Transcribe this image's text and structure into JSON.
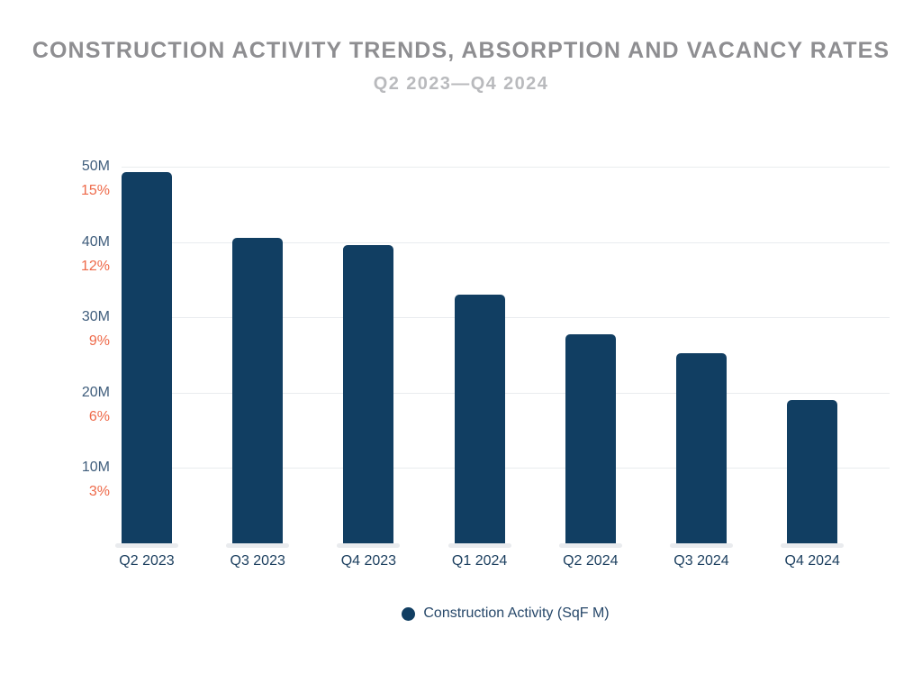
{
  "chart_data": {
    "type": "bar",
    "title": "CONSTRUCTION ACTIVITY TRENDS, ABSORPTION AND VACANCY RATES",
    "subtitle": "Q2 2023—Q4 2024",
    "categories": [
      "Q2 2023",
      "Q3 2023",
      "Q4 2023",
      "Q1 2024",
      "Q2 2024",
      "Q3 2024",
      "Q4 2024"
    ],
    "series": [
      {
        "name": "Construction Activity (SqF M)",
        "color": "#113e62",
        "values": [
          49.3,
          40.5,
          39.6,
          33.0,
          27.8,
          25.3,
          19.0
        ]
      }
    ],
    "axis_ticks": [
      {
        "left": "50M",
        "right": "15%",
        "value": 50
      },
      {
        "left": "40M",
        "right": "12%",
        "value": 40
      },
      {
        "left": "30M",
        "right": "9%",
        "value": 30
      },
      {
        "left": "20M",
        "right": "6%",
        "value": 20
      },
      {
        "left": "10M",
        "right": "3%",
        "value": 10
      }
    ],
    "ylim": [
      0,
      51.8
    ],
    "grid": true,
    "legend_position": "bottom",
    "legend": [
      {
        "label": "Construction Activity (SqF M)",
        "color": "#113e62"
      }
    ]
  },
  "colors": {
    "bar": "#113e62",
    "left_tick": "#3f5d7c",
    "right_tick": "#ee6a4a",
    "x_tick": "#1d4060",
    "legend_text": "#27486a",
    "title": "#8e8e91",
    "subtitle": "#b9babd",
    "gridline": "#e9ecef",
    "pedestal": "#e9ebee",
    "background": "#ffffff"
  }
}
